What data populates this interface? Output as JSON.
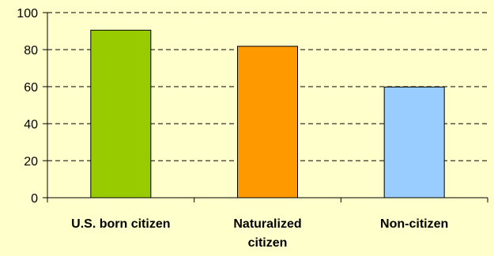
{
  "chart_data": {
    "type": "bar",
    "categories": [
      "U.S. born citizen",
      "Naturalized citizen",
      "Non-citizen"
    ],
    "category_label_lines": [
      [
        "U.S. born citizen"
      ],
      [
        "Naturalized",
        "citizen"
      ],
      [
        "Non-citizen"
      ]
    ],
    "values": [
      90.5,
      81.8,
      59.8
    ],
    "bar_colors": [
      "#99CC00",
      "#FF9900",
      "#99CCFF"
    ],
    "ylim": [
      0,
      100
    ],
    "yticks": [
      0,
      20,
      40,
      60,
      80,
      100
    ],
    "grid": true,
    "title": "",
    "xlabel": "",
    "ylabel": ""
  },
  "colors": {
    "background": "#FFFFCC",
    "axis": "#000000",
    "bar_outline": "#000000"
  }
}
